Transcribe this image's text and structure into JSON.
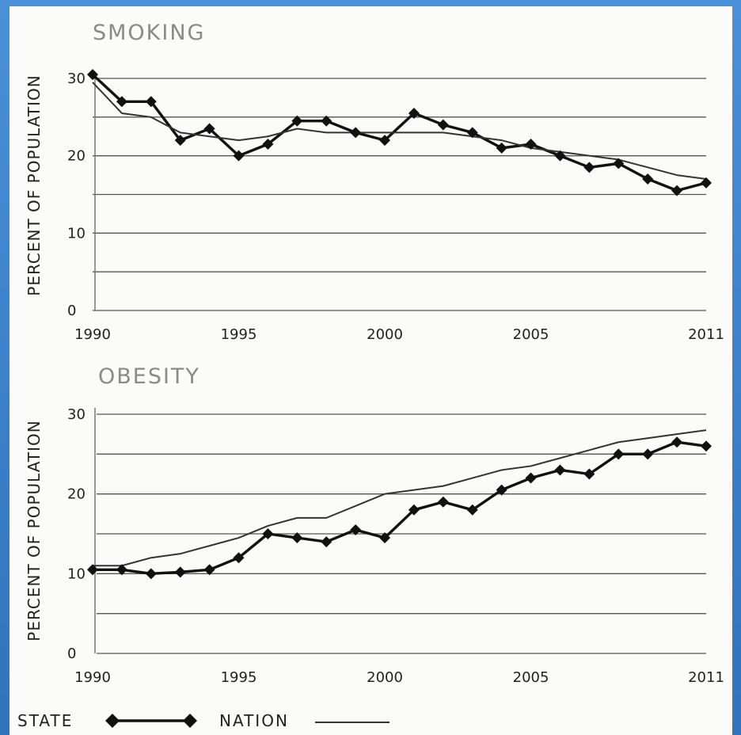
{
  "chart_data": [
    {
      "type": "line",
      "title": "SMOKING",
      "ylabel": "PERCENT OF POPULATION",
      "xlabel": "",
      "ylim": [
        0,
        30
      ],
      "xlim": [
        1990,
        2011
      ],
      "y_ticks": [
        "30",
        "20",
        "10",
        "0"
      ],
      "x_ticks": [
        "1990",
        "1995",
        "2000",
        "2005",
        "2011"
      ],
      "grid": true,
      "x": [
        1990,
        1991,
        1992,
        1993,
        1994,
        1995,
        1996,
        1997,
        1998,
        1999,
        2000,
        2001,
        2002,
        2003,
        2004,
        2005,
        2006,
        2007,
        2008,
        2009,
        2010,
        2011
      ],
      "series": [
        {
          "name": "STATE",
          "values": [
            30.5,
            27.0,
            27.0,
            22.0,
            23.5,
            20.0,
            21.5,
            24.5,
            24.5,
            23.0,
            22.0,
            25.5,
            24.0,
            23.0,
            21.0,
            21.5,
            20.0,
            18.5,
            19.0,
            17.0,
            15.5,
            16.5
          ]
        },
        {
          "name": "NATION",
          "values": [
            29.5,
            25.5,
            25.0,
            23.0,
            22.5,
            22.0,
            22.5,
            23.5,
            23.0,
            23.0,
            23.0,
            23.0,
            23.0,
            22.5,
            22.0,
            21.0,
            20.5,
            20.0,
            19.5,
            18.5,
            17.5,
            17.0
          ]
        }
      ]
    },
    {
      "type": "line",
      "title": "OBESITY",
      "ylabel": "PERCENT OF POPULATION",
      "xlabel": "",
      "ylim": [
        0,
        30
      ],
      "xlim": [
        1990,
        2011
      ],
      "y_ticks": [
        "30",
        "20",
        "10",
        "0"
      ],
      "x_ticks": [
        "1990",
        "1995",
        "2000",
        "2005",
        "2011"
      ],
      "grid": true,
      "x": [
        1990,
        1991,
        1992,
        1993,
        1994,
        1995,
        1996,
        1997,
        1998,
        1999,
        2000,
        2001,
        2002,
        2003,
        2004,
        2005,
        2006,
        2007,
        2008,
        2009,
        2010,
        2011
      ],
      "series": [
        {
          "name": "STATE",
          "values": [
            10.5,
            10.5,
            10.0,
            10.2,
            10.5,
            12.0,
            15.0,
            14.5,
            14.0,
            15.5,
            14.5,
            18.0,
            19.0,
            18.0,
            20.5,
            22.0,
            23.0,
            22.5,
            25.0,
            25.0,
            26.5,
            26.0
          ]
        },
        {
          "name": "NATION",
          "values": [
            11.0,
            11.0,
            12.0,
            12.5,
            13.5,
            14.5,
            16.0,
            17.0,
            17.0,
            18.5,
            20.0,
            20.5,
            21.0,
            22.0,
            23.0,
            23.5,
            24.5,
            25.5,
            26.5,
            27.0,
            27.5,
            28.0
          ]
        }
      ]
    }
  ],
  "legend": {
    "state_label": "STATE",
    "nation_label": "NATION",
    "placement": "bottom-left"
  },
  "colors": {
    "state": "#111111",
    "nation": "#333333",
    "grid": "#555555",
    "frame": "#3b7fc4"
  }
}
